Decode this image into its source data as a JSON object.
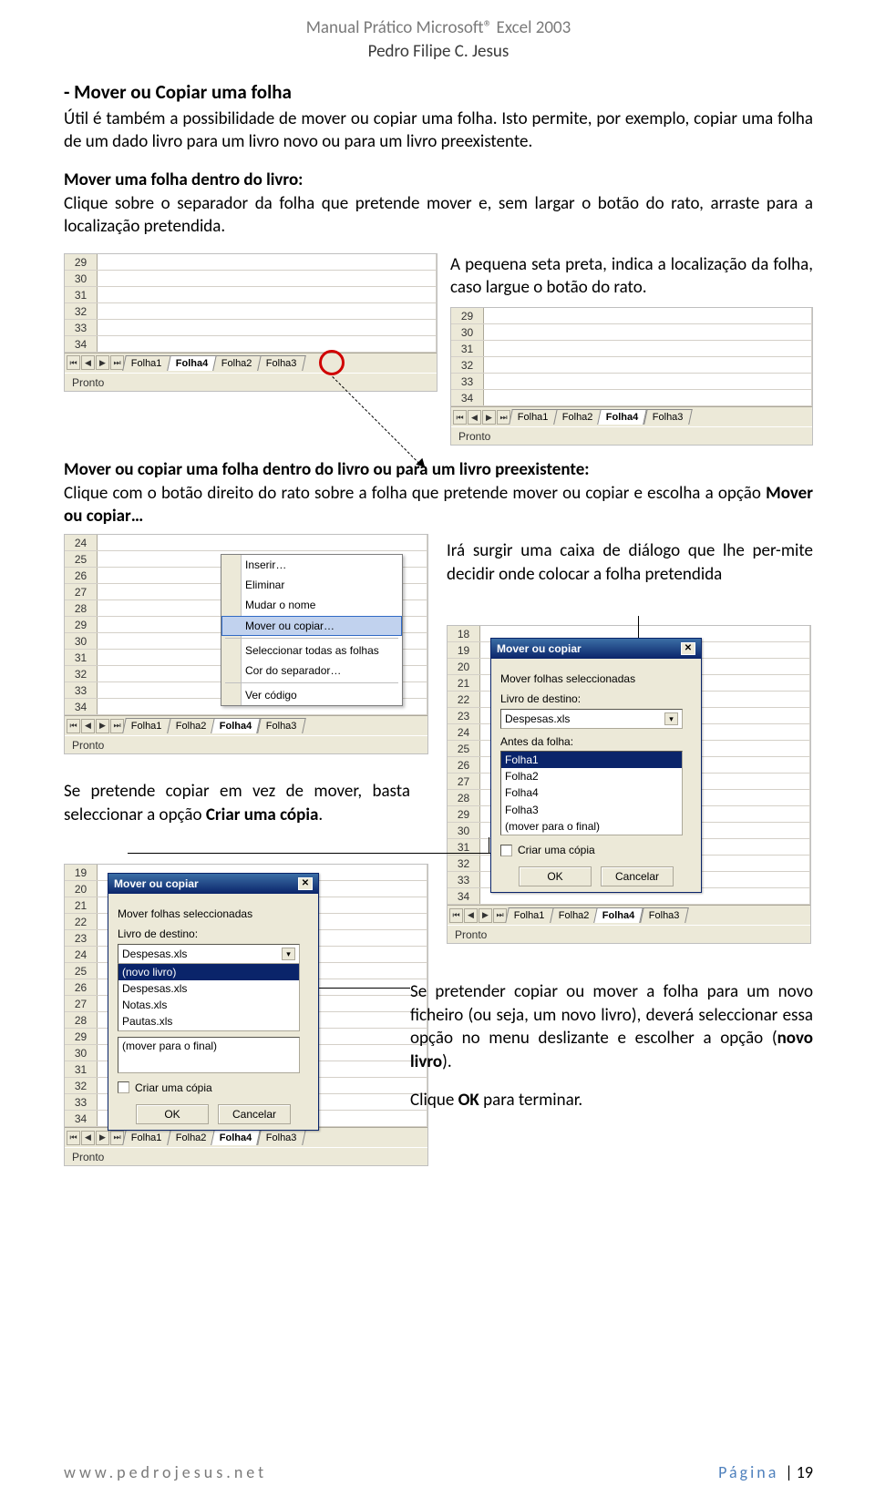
{
  "doc": {
    "title": "Manual Prático Microsoft® Excel 2003",
    "author": "Pedro Filipe C. Jesus"
  },
  "section": {
    "heading": "- Mover ou Copiar uma folha",
    "intro": "Útil é também a possibilidade de mover ou copiar uma folha. Isto permite, por exemplo, copiar uma folha de um dado livro para um livro novo ou para um livro preexistente.",
    "move_title": "Mover uma folha dentro do livro:",
    "move_text": "Clique sobre o separador da folha que pretende mover e, sem largar o botão do rato, arraste para a localização pretendida.",
    "arrow_note": "A pequena seta preta, indica a localização da folha, caso largue o botão do rato.",
    "copy_title": "Mover ou copiar uma folha dentro do livro ou para um livro preexistente:",
    "copy_text_prefix": "Clique com o botão direito do rato sobre a folha que pretende mover ou copiar e escolha a opção ",
    "copy_text_bold": "Mover ou copiar…",
    "dialog_note": "Irá surgir uma caixa de diálogo que lhe per-mite decidir onde colocar a folha pretendida",
    "copy_note_prefix": "Se pretende copiar em vez de mover, basta seleccionar a opção ",
    "copy_note_bold": "Criar uma cópia",
    "copy_note_suffix": ".",
    "newbook_prefix": "Se pretender copiar ou mover a folha para um novo ficheiro (ou seja, um novo livro), deverá seleccionar essa opção no menu deslizante e escolher a opção (",
    "newbook_bold": "novo livro",
    "newbook_suffix": ").",
    "ok_prefix": "Clique ",
    "ok_bold": "OK",
    "ok_suffix": " para terminar."
  },
  "excel": {
    "status": "Pronto",
    "frag1": {
      "rows": [
        "29",
        "30",
        "31",
        "32",
        "33",
        "34"
      ],
      "tabs": [
        "Folha1",
        "Folha4",
        "Folha2",
        "Folha3"
      ],
      "active": 1
    },
    "frag2": {
      "rows": [
        "29",
        "30",
        "31",
        "32",
        "33",
        "34"
      ],
      "tabs": [
        "Folha1",
        "Folha2",
        "Folha4",
        "Folha3"
      ],
      "active": 2
    },
    "frag3": {
      "rows": [
        "24",
        "25",
        "26",
        "27",
        "28",
        "29",
        "30",
        "31",
        "32",
        "33",
        "34"
      ],
      "tabs": [
        "Folha1",
        "Folha2",
        "Folha4",
        "Folha3"
      ],
      "active": 2
    },
    "frag4": {
      "rows": [
        "18",
        "19",
        "20",
        "21",
        "22",
        "23",
        "24",
        "25",
        "26",
        "27",
        "28",
        "29",
        "30",
        "31",
        "32",
        "33",
        "34"
      ],
      "tabs": [
        "Folha1",
        "Folha2",
        "Folha4",
        "Folha3"
      ],
      "active": 2
    },
    "frag5": {
      "rows": [
        "19",
        "20",
        "21",
        "22",
        "23",
        "24",
        "25",
        "26",
        "27",
        "28",
        "29",
        "30",
        "31",
        "32",
        "33",
        "34"
      ],
      "tabs": [
        "Folha1",
        "Folha2",
        "Folha4",
        "Folha3"
      ],
      "active": 2
    }
  },
  "context_menu": {
    "items": [
      "Inserir…",
      "Eliminar",
      "Mudar o nome",
      "Mover ou copiar…",
      "Seleccionar todas as folhas",
      "Cor do separador…",
      "Ver código"
    ],
    "highlighted": 3
  },
  "dialog1": {
    "title": "Mover ou copiar",
    "label_sel": "Mover folhas seleccionadas",
    "label_dest": "Livro de destino:",
    "dest_value": "Despesas.xls",
    "label_before": "Antes da folha:",
    "list": [
      "Folha1",
      "Folha2",
      "Folha4",
      "Folha3",
      "(mover para o final)"
    ],
    "selected": 0,
    "check": "Criar uma cópia",
    "ok": "OK",
    "cancel": "Cancelar"
  },
  "dialog2": {
    "title": "Mover ou copiar",
    "label_sel": "Mover folhas seleccionadas",
    "label_dest": "Livro de destino:",
    "dest_value": "Despesas.xls",
    "drop_list": [
      "(novo livro)",
      "Despesas.xls",
      "Notas.xls",
      "Pautas.xls"
    ],
    "drop_selected": 0,
    "list_single": "(mover para o final)",
    "check": "Criar uma cópia",
    "ok": "OK",
    "cancel": "Cancelar"
  },
  "footer": {
    "url": "www.pedrojesus.net",
    "page_label": "Página",
    "page_num": "| 19"
  },
  "colors": {
    "page_bg": "#ffffff",
    "text": "#000000",
    "muted": "#7a7a7a",
    "accent": "#4f81bd",
    "excel_chrome": "#ece9d8",
    "excel_border": "#aca899",
    "red_circle": "#d00000",
    "title_grad_top": "#3b6ea5",
    "title_grad_bottom": "#0a246a",
    "highlight_bg": "#c1d2ee"
  }
}
